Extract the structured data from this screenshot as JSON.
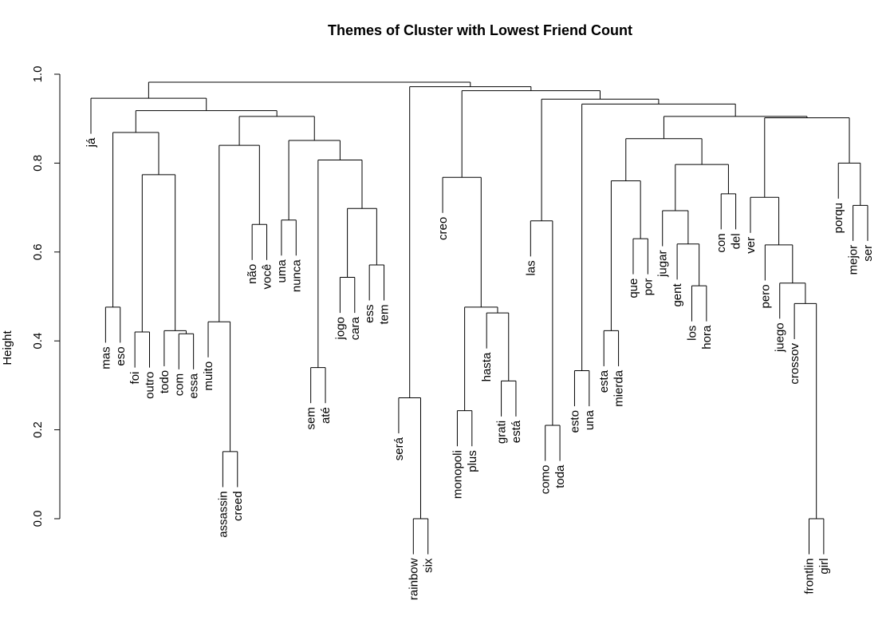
{
  "chart_data": {
    "type": "dendrogram",
    "title": "Themes of Cluster with Lowest Friend Count",
    "ylabel": "Height",
    "ylim": [
      0,
      1
    ],
    "yticks": [
      0.0,
      0.2,
      0.4,
      0.6,
      0.8,
      1.0
    ],
    "ytick_labels": [
      "0.0",
      "0.2",
      "0.4",
      "0.6",
      "0.8",
      "1.0"
    ],
    "leaves": [
      "já",
      "mas",
      "eso",
      "foi",
      "outro",
      "todo",
      "com",
      "essa",
      "muito",
      "assassin",
      "creed",
      "não",
      "você",
      "uma",
      "nunca",
      "sem",
      "até",
      "jogo",
      "cara",
      "ess",
      "tem",
      "será",
      "rainbow",
      "six",
      "creo",
      "monopoli",
      "plus",
      "hasta",
      "grati",
      "está",
      "las",
      "como",
      "toda",
      "esto",
      "una",
      "esta",
      "mierda",
      "que",
      "por",
      "jugar",
      "gent",
      "los",
      "hora",
      "con",
      "del",
      "ver",
      "pero",
      "juego",
      "crossov",
      "frontlin",
      "girl",
      "porqu",
      "mejor",
      "ser"
    ],
    "merges": [
      {
        "id": "m1",
        "left": "L:assassin",
        "right": "L:creed",
        "height": 0.151
      },
      {
        "id": "m2",
        "left": "L:rainbow",
        "right": "L:six",
        "height": 0.0
      },
      {
        "id": "m3",
        "left": "L:frontlin",
        "right": "L:girl",
        "height": 0.0
      },
      {
        "id": "m4",
        "left": "L:como",
        "right": "L:toda",
        "height": 0.21
      },
      {
        "id": "m5",
        "left": "L:monopoli",
        "right": "L:plus",
        "height": 0.243
      },
      {
        "id": "m6",
        "left": "L:será",
        "right": "M:m2",
        "height": 0.272
      },
      {
        "id": "m7",
        "left": "L:grati",
        "right": "L:está",
        "height": 0.31
      },
      {
        "id": "m8",
        "left": "L:esto",
        "right": "L:una",
        "height": 0.333
      },
      {
        "id": "m9",
        "left": "L:sem",
        "right": "L:até",
        "height": 0.34
      },
      {
        "id": "m10",
        "left": "L:essa",
        "right": "L:com",
        "height": 0.416
      },
      {
        "id": "m11",
        "left": "L:foi",
        "right": "L:outro",
        "height": 0.42
      },
      {
        "id": "m12",
        "left": "L:esta",
        "right": "L:mierda",
        "height": 0.423
      },
      {
        "id": "m13",
        "left": "L:todo",
        "right": "M:m10",
        "height": 0.423
      },
      {
        "id": "m14",
        "left": "L:muito",
        "right": "M:m1",
        "height": 0.443
      },
      {
        "id": "m15",
        "left": "L:hasta",
        "right": "M:m7",
        "height": 0.463
      },
      {
        "id": "m16",
        "left": "L:mas",
        "right": "L:eso",
        "height": 0.476
      },
      {
        "id": "m17",
        "left": "M:m5",
        "right": "M:m15",
        "height": 0.476
      },
      {
        "id": "m18",
        "left": "L:crossov",
        "right": "M:m3",
        "height": 0.484
      },
      {
        "id": "m19",
        "left": "L:los",
        "right": "L:hora",
        "height": 0.524
      },
      {
        "id": "m20",
        "left": "L:juego",
        "right": "M:m18",
        "height": 0.53
      },
      {
        "id": "m21",
        "left": "L:jogo",
        "right": "L:cara",
        "height": 0.543
      },
      {
        "id": "m22",
        "left": "L:ess",
        "right": "L:tem",
        "height": 0.571
      },
      {
        "id": "m23",
        "left": "L:pero",
        "right": "M:m20",
        "height": 0.616
      },
      {
        "id": "m24",
        "left": "L:gent",
        "right": "M:m19",
        "height": 0.618
      },
      {
        "id": "m25",
        "left": "L:que",
        "right": "L:por",
        "height": 0.63
      },
      {
        "id": "m26",
        "left": "L:não",
        "right": "L:você",
        "height": 0.662
      },
      {
        "id": "m27",
        "left": "L:las",
        "right": "M:m4",
        "height": 0.67
      },
      {
        "id": "m28",
        "left": "L:uma",
        "right": "L:nunca",
        "height": 0.672
      },
      {
        "id": "m29",
        "left": "L:jugar",
        "right": "M:m24",
        "height": 0.693
      },
      {
        "id": "m30",
        "left": "M:m21",
        "right": "M:m22",
        "height": 0.698
      },
      {
        "id": "m31",
        "left": "L:mejor",
        "right": "L:ser",
        "height": 0.705
      },
      {
        "id": "m32",
        "left": "L:con",
        "right": "L:del",
        "height": 0.731
      },
      {
        "id": "m33",
        "left": "L:ver",
        "right": "M:m23",
        "height": 0.723
      },
      {
        "id": "m34",
        "left": "M:m12",
        "right": "M:m25",
        "height": 0.76
      },
      {
        "id": "m35",
        "left": "L:creo",
        "right": "M:m17",
        "height": 0.768
      },
      {
        "id": "m36",
        "left": "M:m11",
        "right": "M:m13",
        "height": 0.774
      },
      {
        "id": "m37",
        "left": "M:m29",
        "right": "M:m32",
        "height": 0.797
      },
      {
        "id": "m38",
        "left": "L:porqu",
        "right": "M:m31",
        "height": 0.8
      },
      {
        "id": "m39",
        "left": "M:m9",
        "right": "M:m30",
        "height": 0.807
      },
      {
        "id": "m40",
        "left": "M:m14",
        "right": "M:m26",
        "height": 0.84
      },
      {
        "id": "m41",
        "left": "M:m28",
        "right": "M:m39",
        "height": 0.851
      },
      {
        "id": "m42",
        "left": "M:m34",
        "right": "M:m37",
        "height": 0.855
      },
      {
        "id": "m43",
        "left": "M:m16",
        "right": "M:m36",
        "height": 0.869
      },
      {
        "id": "m44",
        "left": "M:m33",
        "right": "M:m38",
        "height": 0.902
      },
      {
        "id": "m45",
        "left": "M:m40",
        "right": "M:m41",
        "height": 0.905
      },
      {
        "id": "m46",
        "left": "M:m42",
        "right": "M:m44",
        "height": 0.905
      },
      {
        "id": "m47",
        "left": "M:m8",
        "right": "M:m46",
        "height": 0.933
      },
      {
        "id": "m48",
        "left": "M:m43",
        "right": "M:m45",
        "height": 0.918
      },
      {
        "id": "m49",
        "left": "M:m27",
        "right": "M:m47",
        "height": 0.944
      },
      {
        "id": "m50",
        "left": "L:já",
        "right": "M:m48",
        "height": 0.946
      },
      {
        "id": "m51",
        "left": "M:m35",
        "right": "M:m49",
        "height": 0.963
      },
      {
        "id": "m52",
        "left": "M:m6",
        "right": "M:m51",
        "height": 0.972
      },
      {
        "id": "m53",
        "left": "M:m50",
        "right": "M:m52",
        "height": 0.982
      }
    ]
  },
  "colors": {
    "line": "#000000",
    "background": "#ffffff"
  }
}
